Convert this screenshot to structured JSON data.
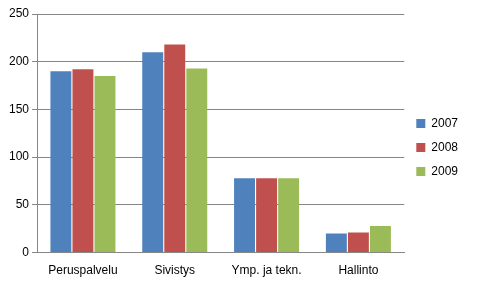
{
  "chart_data": {
    "type": "bar",
    "categories": [
      "Peruspalvelu",
      "Sivistys",
      "Ymp. ja tekn.",
      "Hallinto"
    ],
    "series": [
      {
        "name": "2007",
        "color": "#4f81bd",
        "values": [
          190,
          210,
          78,
          20
        ]
      },
      {
        "name": "2008",
        "color": "#c0504d",
        "values": [
          192,
          218,
          78,
          21
        ]
      },
      {
        "name": "2009",
        "color": "#9bbb59",
        "values": [
          185,
          193,
          78,
          28
        ]
      }
    ],
    "ylim": [
      0,
      250
    ],
    "yticks": [
      0,
      50,
      100,
      150,
      200,
      250
    ],
    "grid": true,
    "legend": "right"
  }
}
